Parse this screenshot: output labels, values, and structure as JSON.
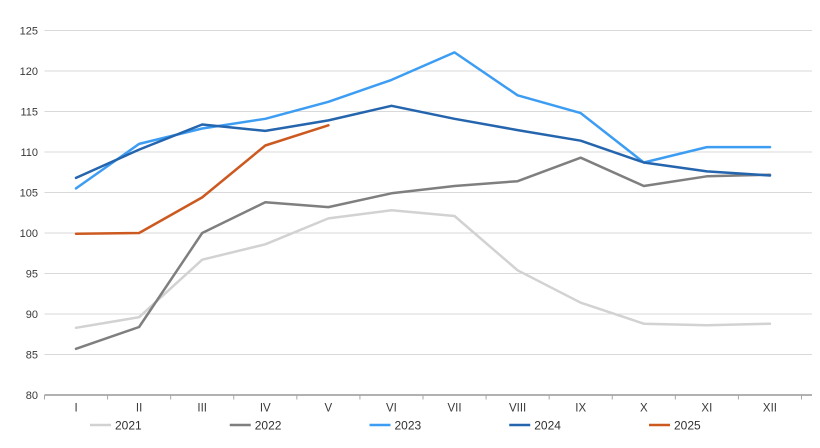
{
  "chart_data": {
    "type": "line",
    "title": "",
    "xlabel": "",
    "ylabel": "",
    "categories": [
      "I",
      "II",
      "III",
      "IV",
      "V",
      "VI",
      "VII",
      "VIII",
      "IX",
      "X",
      "XI",
      "XII"
    ],
    "yticks": [
      125,
      120,
      115,
      110,
      105,
      100,
      95,
      90,
      85,
      80
    ],
    "ylim": [
      80,
      125
    ],
    "grid": "horizontal",
    "legend_position": "bottom",
    "series": [
      {
        "name": "2021",
        "color": "#d2d2d2",
        "values": [
          88.3,
          89.6,
          96.7,
          98.6,
          101.8,
          102.8,
          102.1,
          95.4,
          91.4,
          88.8,
          88.6,
          88.8
        ]
      },
      {
        "name": "2022",
        "color": "#7f7f7f",
        "values": [
          85.7,
          88.4,
          100.0,
          103.8,
          103.2,
          104.9,
          105.8,
          106.4,
          109.3,
          105.8,
          107.0,
          107.2
        ]
      },
      {
        "name": "2023",
        "color": "#3d9df3",
        "values": [
          105.5,
          111.0,
          112.9,
          114.1,
          116.2,
          118.9,
          122.3,
          117.0,
          114.8,
          108.7,
          110.6,
          110.6
        ]
      },
      {
        "name": "2024",
        "color": "#2565ae",
        "values": [
          106.8,
          110.3,
          113.4,
          112.6,
          113.9,
          115.7,
          114.1,
          112.7,
          111.4,
          108.7,
          107.6,
          107.1
        ]
      },
      {
        "name": "2025",
        "color": "#cc5a20",
        "values": [
          99.9,
          100.0,
          104.4,
          110.8,
          113.3,
          null,
          null,
          null,
          null,
          null,
          null,
          null
        ]
      }
    ],
    "colors": {
      "gridline": "#d9d9d9",
      "axis": "#a6a6a6",
      "tick": "#a6a6a6",
      "label": "#3a3a3a",
      "background": "#ffffff"
    }
  }
}
